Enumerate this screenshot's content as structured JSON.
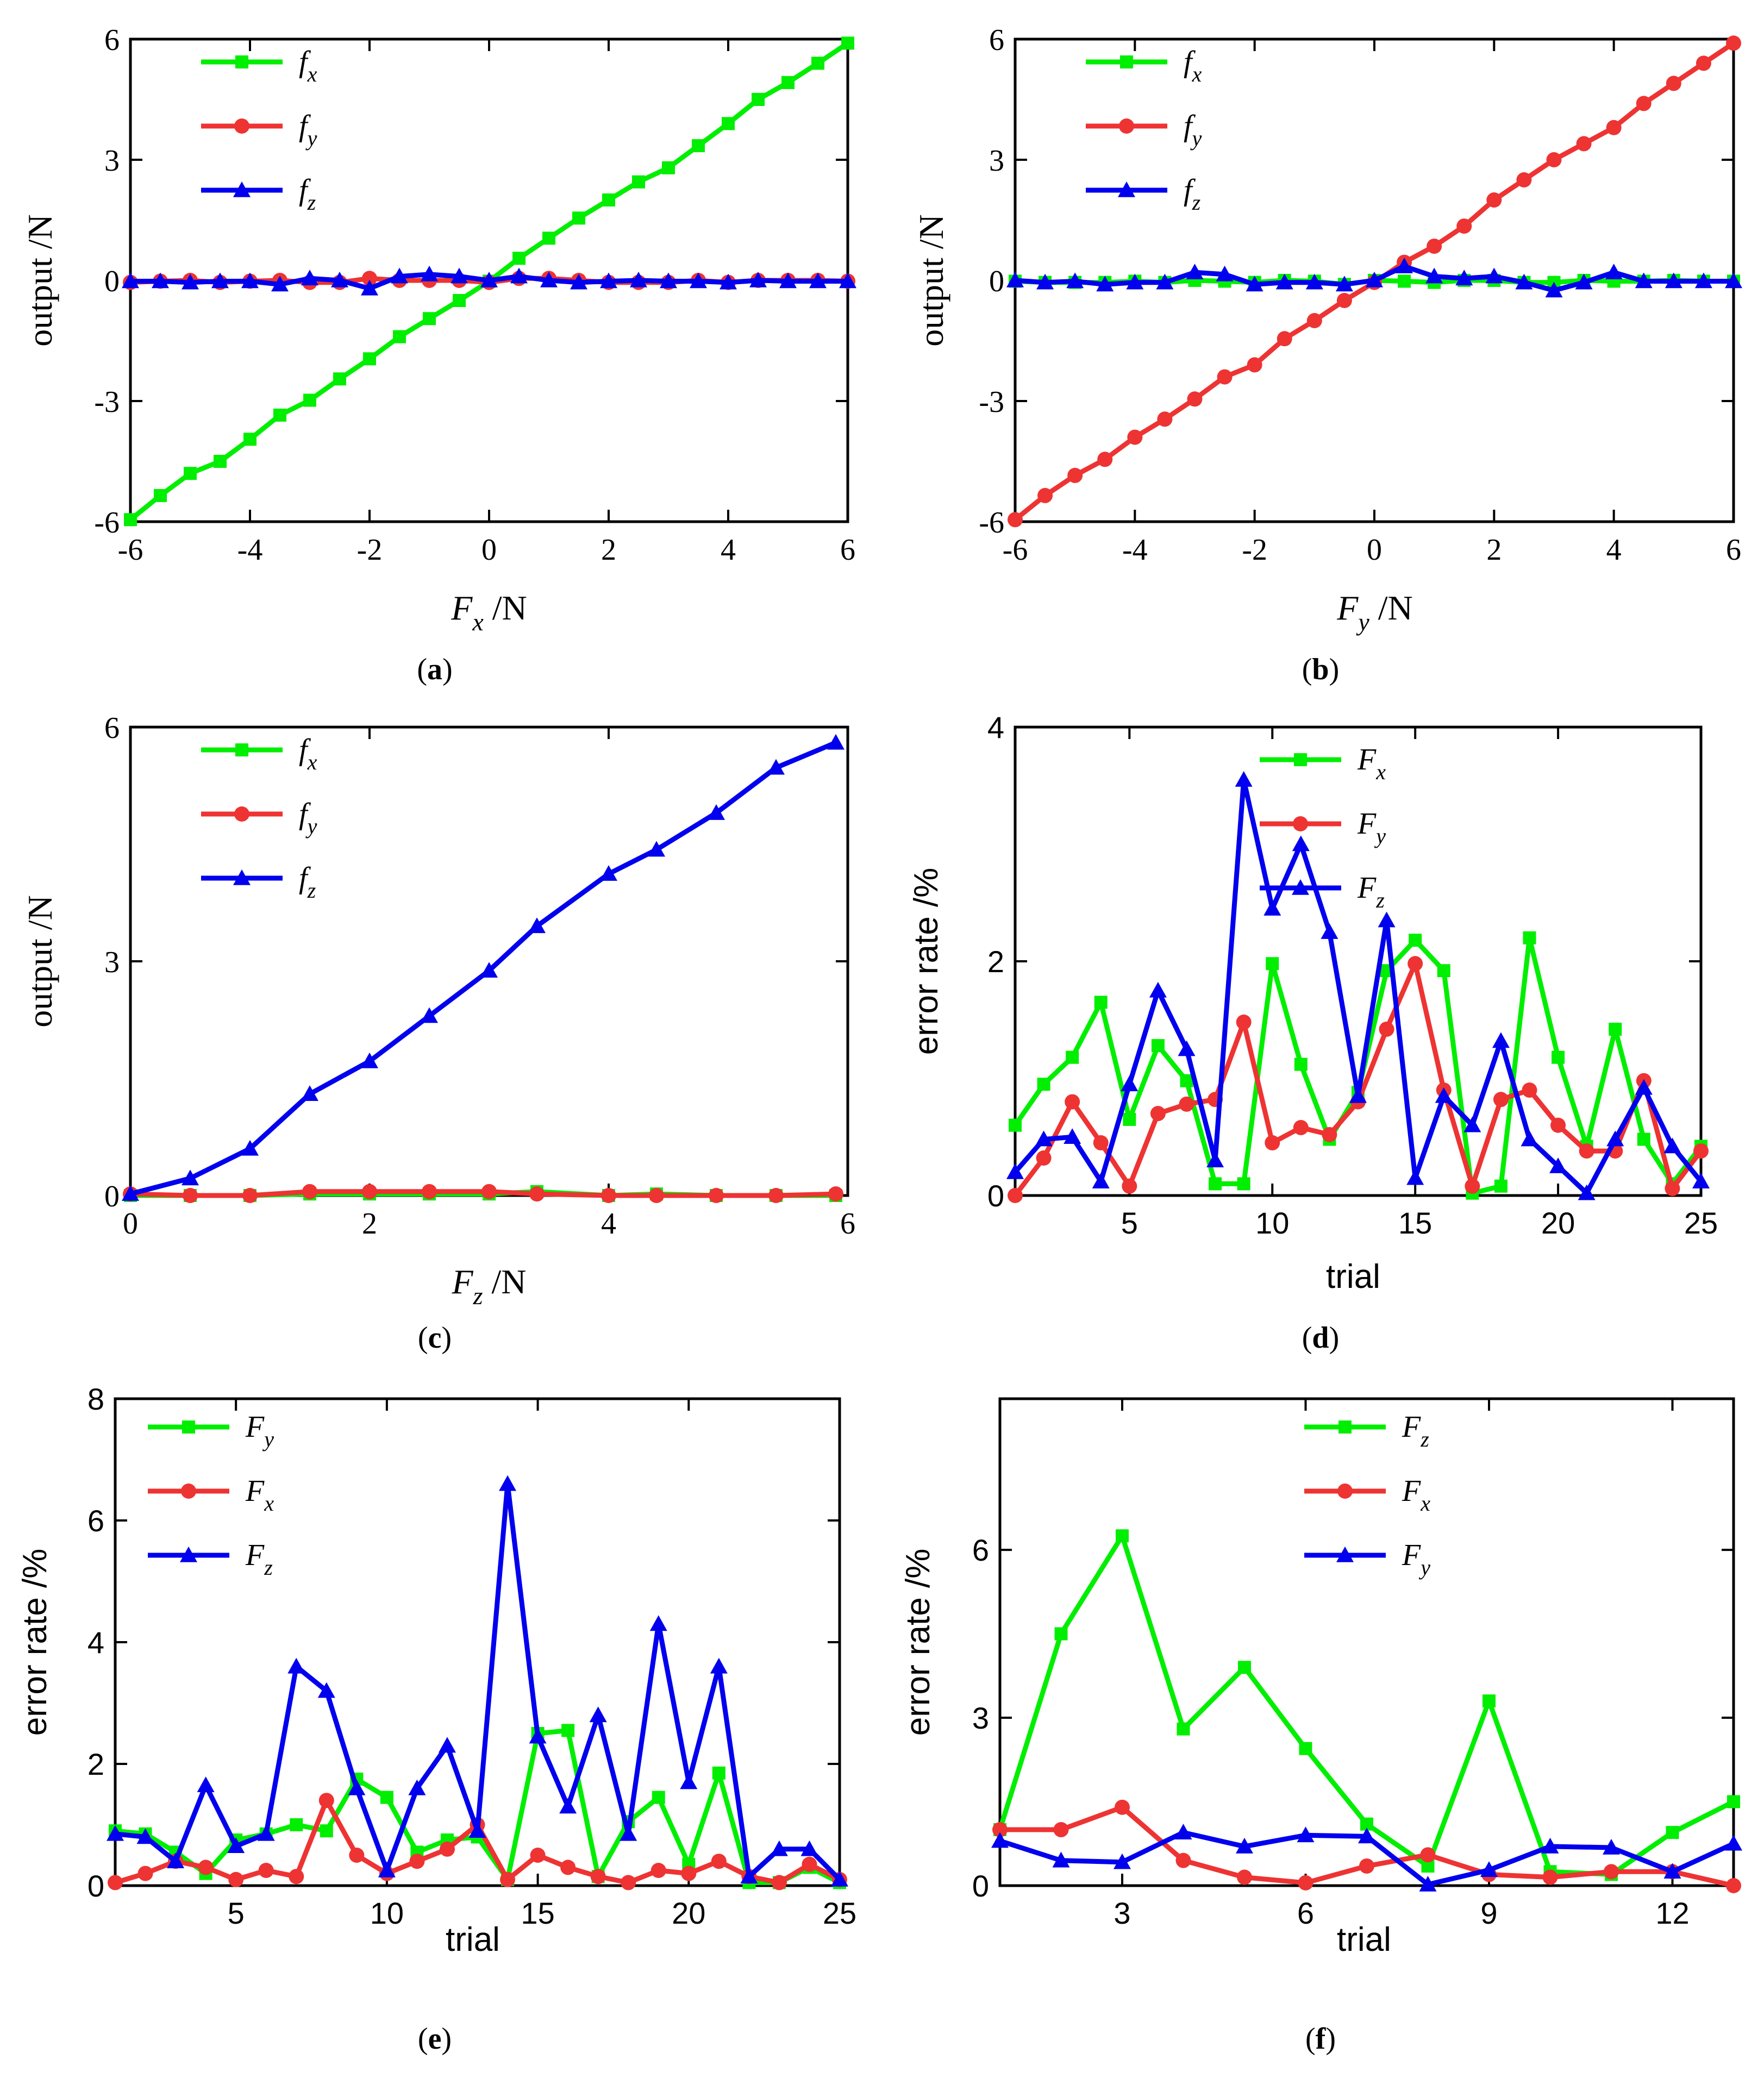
{
  "chart_data": [
    {
      "panel": "a",
      "type": "line",
      "caption": "a",
      "xlabel": "F",
      "xlabel_sub": "x",
      "xlabel_unit": " /N",
      "ylabel": "output /N",
      "xlim": [
        -6,
        6
      ],
      "ylim": [
        -6,
        6
      ],
      "xticks": [
        -6,
        -4,
        -2,
        0,
        2,
        4,
        6
      ],
      "yticks": [
        -6,
        -3,
        0,
        3,
        6
      ],
      "xtick_labels": [
        "-6",
        "-4",
        "-2",
        "0",
        "2",
        "4",
        "6"
      ],
      "ytick_labels": [
        "-6",
        "-3",
        "0",
        "3",
        "6"
      ],
      "legend": [
        "f|x",
        "f|y",
        "f|z"
      ],
      "x": [
        -6,
        -5.5,
        -5,
        -4.5,
        -4,
        -3.5,
        -3,
        -2.5,
        -2,
        -1.5,
        -1,
        -0.5,
        0,
        0.5,
        1,
        1.5,
        2,
        2.5,
        3,
        3.5,
        4,
        4.5,
        5,
        5.5,
        6
      ],
      "series": [
        {
          "name": "fx",
          "color": "#00ee00",
          "marker": "square",
          "values": [
            -5.95,
            -5.35,
            -4.8,
            -4.5,
            -3.95,
            -3.35,
            -2.98,
            -2.45,
            -1.95,
            -1.4,
            -0.95,
            -0.5,
            -0.02,
            0.55,
            1.05,
            1.55,
            2.0,
            2.45,
            2.8,
            3.35,
            3.9,
            4.5,
            4.92,
            5.4,
            5.9
          ]
        },
        {
          "name": "fy",
          "color": "#ee3333",
          "marker": "circle",
          "values": [
            -0.05,
            -0.02,
            0.0,
            -0.05,
            -0.02,
            0.0,
            -0.05,
            -0.05,
            0.05,
            0.0,
            0.0,
            0.0,
            -0.05,
            0.05,
            0.05,
            0.0,
            -0.05,
            -0.05,
            -0.05,
            0.0,
            -0.05,
            0.0,
            0.0,
            0.0,
            -0.02
          ]
        },
        {
          "name": "fz",
          "color": "#0000ee",
          "marker": "triangle",
          "values": [
            -0.02,
            -0.02,
            -0.05,
            -0.02,
            -0.02,
            -0.1,
            0.05,
            0.0,
            -0.2,
            0.1,
            0.15,
            0.1,
            0.0,
            0.1,
            0.0,
            -0.05,
            -0.02,
            0.0,
            -0.02,
            -0.02,
            -0.05,
            0.0,
            -0.02,
            -0.02,
            -0.02
          ]
        }
      ]
    },
    {
      "panel": "b",
      "type": "line",
      "caption": "b",
      "xlabel": "F",
      "xlabel_sub": "y",
      "xlabel_unit": " /N",
      "ylabel": "output /N",
      "xlim": [
        -6,
        6
      ],
      "ylim": [
        -6,
        6
      ],
      "xticks": [
        -6,
        -4,
        -2,
        0,
        2,
        4,
        6
      ],
      "yticks": [
        -6,
        -3,
        0,
        3,
        6
      ],
      "xtick_labels": [
        "-6",
        "-4",
        "-2",
        "0",
        "2",
        "4",
        "6"
      ],
      "ytick_labels": [
        "-6",
        "-3",
        "0",
        "3",
        "6"
      ],
      "legend": [
        "f|x",
        "f|y",
        "f|z"
      ],
      "x": [
        -6,
        -5.5,
        -5,
        -4.5,
        -4,
        -3.5,
        -3,
        -2.5,
        -2,
        -1.5,
        -1,
        -0.5,
        0,
        0.5,
        1,
        1.5,
        2,
        2.5,
        3,
        3.5,
        4,
        4.5,
        5,
        5.5,
        6
      ],
      "series": [
        {
          "name": "fx",
          "color": "#00ee00",
          "marker": "square",
          "values": [
            -0.02,
            -0.05,
            -0.05,
            -0.05,
            -0.02,
            -0.05,
            0.0,
            -0.02,
            -0.05,
            0.0,
            -0.02,
            -0.1,
            0.0,
            -0.02,
            -0.05,
            0.0,
            0.0,
            -0.05,
            -0.05,
            0.0,
            -0.02,
            -0.02,
            0.0,
            -0.02,
            -0.02
          ]
        },
        {
          "name": "fy",
          "color": "#ee3333",
          "marker": "circle",
          "values": [
            -5.95,
            -5.35,
            -4.85,
            -4.45,
            -3.9,
            -3.45,
            -2.95,
            -2.4,
            -2.1,
            -1.45,
            -1.0,
            -0.5,
            -0.05,
            0.45,
            0.85,
            1.35,
            2.0,
            2.5,
            3.0,
            3.4,
            3.8,
            4.4,
            4.9,
            5.4,
            5.9
          ]
        },
        {
          "name": "fz",
          "color": "#0000ee",
          "marker": "triangle",
          "values": [
            0.0,
            -0.05,
            -0.02,
            -0.1,
            -0.05,
            -0.05,
            0.2,
            0.15,
            -0.1,
            -0.05,
            -0.05,
            -0.1,
            0.0,
            0.35,
            0.1,
            0.05,
            0.1,
            -0.05,
            -0.25,
            -0.05,
            0.2,
            -0.02,
            -0.02,
            -0.02,
            -0.02
          ]
        }
      ]
    },
    {
      "panel": "c",
      "type": "line",
      "caption": "c",
      "xlabel": "F",
      "xlabel_sub": "z",
      "xlabel_unit": " /N",
      "ylabel": "output /N",
      "xlim": [
        0,
        6
      ],
      "ylim": [
        0,
        6
      ],
      "xticks": [
        0,
        2,
        4,
        6
      ],
      "yticks": [
        0,
        3,
        6
      ],
      "xtick_labels": [
        "0",
        "2",
        "4",
        "6"
      ],
      "ytick_labels": [
        "0",
        "3",
        "6"
      ],
      "legend": [
        "f|x",
        "f|y",
        "f|z"
      ],
      "x": [
        0,
        0.5,
        1,
        1.5,
        2,
        2.5,
        3,
        3.4,
        4,
        4.4,
        4.9,
        5.4,
        5.9
      ],
      "series": [
        {
          "name": "fx",
          "color": "#00ee00",
          "marker": "square",
          "values": [
            0.0,
            0.0,
            0.0,
            0.02,
            0.02,
            0.02,
            0.02,
            0.05,
            0.0,
            0.02,
            0.0,
            0.0,
            0.0
          ]
        },
        {
          "name": "fy",
          "color": "#ee3333",
          "marker": "circle",
          "values": [
            0.02,
            0.0,
            0.0,
            0.05,
            0.05,
            0.05,
            0.05,
            0.02,
            0.0,
            0.0,
            0.0,
            0.0,
            0.02
          ]
        },
        {
          "name": "fz",
          "color": "#0000ee",
          "marker": "triangle",
          "values": [
            0.02,
            0.22,
            0.6,
            1.3,
            1.72,
            2.3,
            2.88,
            3.45,
            4.12,
            4.43,
            4.9,
            5.48,
            5.8
          ]
        }
      ]
    },
    {
      "panel": "d",
      "type": "line",
      "caption": "d",
      "xlabel": "trial",
      "ylabel": "error rate /%",
      "xlim": [
        1,
        25
      ],
      "ylim": [
        0,
        4
      ],
      "xticks": [
        5,
        10,
        15,
        20,
        25
      ],
      "yticks": [
        0,
        2,
        4
      ],
      "xtick_labels": [
        "5",
        "10",
        "15",
        "20",
        "25"
      ],
      "ytick_labels": [
        "0",
        "2",
        "4"
      ],
      "legend": [
        "F|x",
        "F|y",
        "F|z"
      ],
      "x": [
        1,
        2,
        3,
        4,
        5,
        6,
        7,
        8,
        9,
        10,
        11,
        12,
        13,
        14,
        15,
        16,
        17,
        18,
        19,
        20,
        21,
        22,
        23,
        24,
        25
      ],
      "series": [
        {
          "name": "Fx",
          "color": "#00ee00",
          "marker": "square",
          "values": [
            0.6,
            0.95,
            1.18,
            1.65,
            0.65,
            1.28,
            0.98,
            0.1,
            0.1,
            1.98,
            1.12,
            0.48,
            0.88,
            1.92,
            2.18,
            1.92,
            0.02,
            0.08,
            2.2,
            1.18,
            0.42,
            1.42,
            0.48,
            0.1,
            0.42
          ]
        },
        {
          "name": "Fy",
          "color": "#ee3333",
          "marker": "circle",
          "values": [
            0.0,
            0.32,
            0.8,
            0.45,
            0.08,
            0.7,
            0.78,
            0.82,
            1.48,
            0.45,
            0.58,
            0.52,
            0.8,
            1.42,
            1.98,
            0.9,
            0.08,
            0.82,
            0.9,
            0.6,
            0.38,
            0.38,
            0.98,
            0.06,
            0.38
          ]
        },
        {
          "name": "Fz",
          "color": "#0000ee",
          "marker": "triangle",
          "values": [
            0.2,
            0.48,
            0.5,
            0.12,
            0.95,
            1.75,
            1.25,
            0.3,
            3.55,
            2.45,
            3.0,
            2.25,
            0.85,
            2.35,
            0.15,
            0.85,
            0.6,
            1.32,
            0.48,
            0.25,
            0.02,
            0.48,
            0.92,
            0.42,
            0.12
          ]
        }
      ]
    },
    {
      "panel": "e",
      "type": "line",
      "caption": "e",
      "xlabel": "trial",
      "ylabel": "error rate /%",
      "xlim": [
        1,
        25
      ],
      "ylim": [
        0,
        8
      ],
      "xticks": [
        5,
        10,
        15,
        20,
        25
      ],
      "yticks": [
        0,
        2,
        4,
        6,
        8
      ],
      "xtick_labels": [
        "5",
        "10",
        "15",
        "20",
        "25"
      ],
      "ytick_labels": [
        "0",
        "2",
        "4",
        "6",
        "8"
      ],
      "legend": [
        "F|y",
        "F|x",
        "F|z"
      ],
      "x": [
        1,
        2,
        3,
        4,
        5,
        6,
        7,
        8,
        9,
        10,
        11,
        12,
        13,
        14,
        15,
        16,
        17,
        18,
        19,
        20,
        21,
        22,
        23,
        24,
        25
      ],
      "series": [
        {
          "name": "Fy",
          "color": "#00ee00",
          "marker": "square",
          "values": [
            0.9,
            0.85,
            0.55,
            0.2,
            0.75,
            0.85,
            1.0,
            0.9,
            1.75,
            1.45,
            0.55,
            0.75,
            0.8,
            0.1,
            2.5,
            2.55,
            0.15,
            1.05,
            1.45,
            0.35,
            1.85,
            0.05,
            0.05,
            0.3,
            0.05
          ]
        },
        {
          "name": "Fx",
          "color": "#ee3333",
          "marker": "circle",
          "values": [
            0.05,
            0.2,
            0.4,
            0.3,
            0.1,
            0.25,
            0.15,
            1.4,
            0.5,
            0.2,
            0.4,
            0.6,
            1.0,
            0.1,
            0.5,
            0.3,
            0.15,
            0.05,
            0.25,
            0.2,
            0.4,
            0.15,
            0.05,
            0.35,
            0.1
          ]
        },
        {
          "name": "Fz",
          "color": "#0000ee",
          "marker": "triangle",
          "values": [
            0.85,
            0.8,
            0.4,
            1.65,
            0.65,
            0.85,
            3.6,
            3.2,
            1.6,
            0.25,
            1.6,
            2.3,
            0.9,
            6.6,
            2.45,
            1.3,
            2.8,
            0.85,
            4.3,
            1.7,
            3.6,
            0.15,
            0.6,
            0.6,
            0.1
          ]
        }
      ]
    },
    {
      "panel": "f",
      "type": "line",
      "caption": "f",
      "xlabel": "trial",
      "ylabel": "error rate /%",
      "xlim": [
        1,
        13
      ],
      "ylim": [
        0,
        8.7
      ],
      "xticks": [
        3,
        6,
        9,
        12
      ],
      "yticks": [
        0,
        3,
        6
      ],
      "xtick_labels": [
        "3",
        "6",
        "9",
        "12"
      ],
      "ytick_labels": [
        "0",
        "3",
        "6"
      ],
      "legend": [
        "F|z",
        "F|x",
        "F|y"
      ],
      "x": [
        1,
        2,
        3,
        4,
        5,
        6,
        7,
        8,
        9,
        10,
        11,
        12,
        13
      ],
      "series": [
        {
          "name": "Fz",
          "color": "#00ee00",
          "marker": "square",
          "values": [
            1.0,
            4.5,
            6.25,
            2.8,
            3.9,
            2.45,
            1.1,
            0.35,
            3.3,
            0.25,
            0.2,
            0.95,
            1.5
          ]
        },
        {
          "name": "Fx",
          "color": "#ee3333",
          "marker": "circle",
          "values": [
            1.0,
            1.0,
            1.4,
            0.45,
            0.15,
            0.05,
            0.35,
            0.55,
            0.2,
            0.15,
            0.25,
            0.25,
            0.0
          ]
        },
        {
          "name": "Fy",
          "color": "#0000ee",
          "marker": "triangle",
          "values": [
            0.8,
            0.45,
            0.42,
            0.95,
            0.7,
            0.9,
            0.88,
            0.02,
            0.28,
            0.7,
            0.68,
            0.25,
            0.75
          ]
        }
      ]
    }
  ]
}
